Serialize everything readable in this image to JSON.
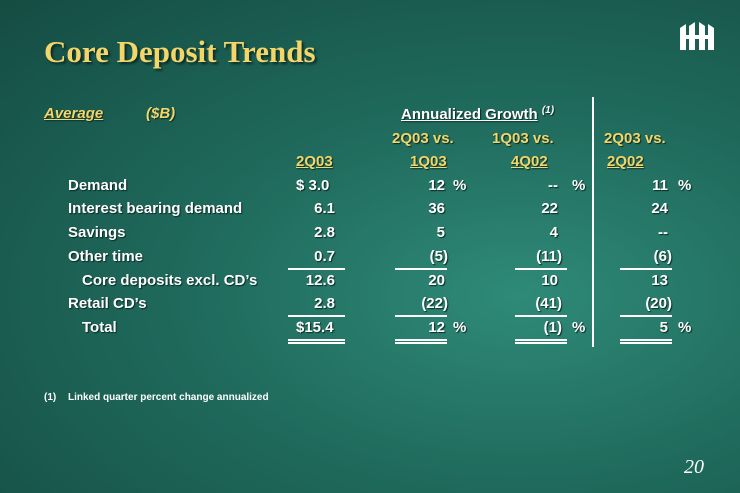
{
  "title": "Core Deposit Trends",
  "logo_icon": "bank-logo-icon",
  "header": {
    "average": "Average",
    "unit": "($B)",
    "growth": "Annualized Growth",
    "growth_note": "(1)"
  },
  "columns": {
    "c1_top": "",
    "c1_bottom": "2Q03",
    "c2_top": "2Q03 vs.",
    "c2_bottom": "1Q03",
    "c3_top": "1Q03 vs.",
    "c3_bottom": "4Q02",
    "c4_top": "2Q03 vs.",
    "c4_bottom": "2Q02"
  },
  "rows": [
    {
      "label": "Demand",
      "v1": "$  3.0",
      "v2": "12",
      "p2": "%",
      "v3": "--",
      "p3": "%",
      "v4": "11",
      "p4": "%"
    },
    {
      "label": "Interest bearing demand",
      "v1": "6.1",
      "v2": "36",
      "p2": "",
      "v3": "22",
      "p3": "",
      "v4": "24",
      "p4": ""
    },
    {
      "label": "Savings",
      "v1": "2.8",
      "v2": "5",
      "p2": "",
      "v3": "4",
      "p3": "",
      "v4": "--",
      "p4": ""
    },
    {
      "label": "Other time",
      "v1": "0.7",
      "v2": "(5)",
      "p2": "",
      "v3": "(11)",
      "p3": "",
      "v4": "(6)",
      "p4": ""
    },
    {
      "label": "Core deposits excl. CD’s",
      "v1": "12.6",
      "v2": "20",
      "p2": "",
      "v3": "10",
      "p3": "",
      "v4": "13",
      "p4": ""
    },
    {
      "label": "Retail CD’s",
      "v1": "2.8",
      "v2": "(22)",
      "p2": "",
      "v3": "(41)",
      "p3": "",
      "v4": "(20)",
      "p4": ""
    },
    {
      "label": "Total",
      "v1": "$15.4",
      "v2": "12",
      "p2": "%",
      "v3": "(1)",
      "p3": "%",
      "v4": "5",
      "p4": "%"
    }
  ],
  "footnote": {
    "marker": "(1)",
    "text": "Linked quarter percent change annualized"
  },
  "page_number": "20"
}
